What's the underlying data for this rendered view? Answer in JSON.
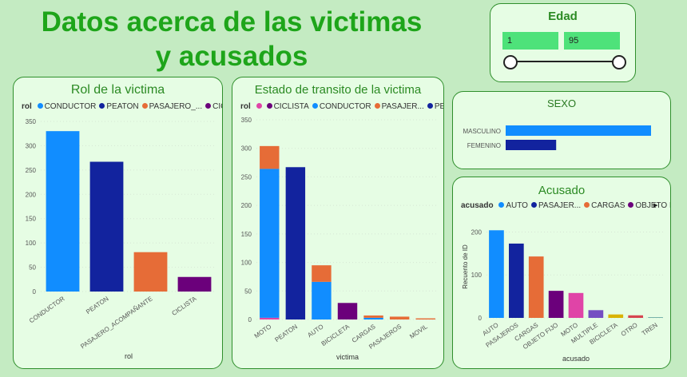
{
  "page": {
    "title_line1": "Datos acerca de las victimas",
    "title_line2": "y acusados"
  },
  "edad": {
    "title": "Edad",
    "min": "1",
    "max": "95"
  },
  "colors": {
    "blue": "#118dff",
    "navy": "#12239e",
    "orange": "#e66c37",
    "purple": "#6b007b",
    "pink": "#e044a7",
    "violet": "#744ec2",
    "yellow": "#d9b300",
    "red": "#d64550",
    "teal": "#197278"
  },
  "rol": {
    "title": "Rol de la victima",
    "legend_title": "rol",
    "legend": [
      {
        "label": "CONDUCTOR",
        "color": "#118dff"
      },
      {
        "label": "PEATON",
        "color": "#12239e"
      },
      {
        "label": "PASAJERO_...",
        "color": "#e66c37"
      },
      {
        "label": "CICLISTA",
        "color": "#6b007b"
      }
    ],
    "xlabel": "rol"
  },
  "estado": {
    "title": "Estado de transito de la victima",
    "legend_title": "rol",
    "legend": [
      {
        "label": "",
        "color": "#e044a7"
      },
      {
        "label": "CICLISTA",
        "color": "#6b007b"
      },
      {
        "label": "CONDUCTOR",
        "color": "#118dff"
      },
      {
        "label": "PASAJER...",
        "color": "#e66c37"
      },
      {
        "label": "PEATON",
        "color": "#12239e"
      }
    ],
    "xlabel": "victima"
  },
  "sexo": {
    "title": "SEXO"
  },
  "acusado": {
    "title": "Acusado",
    "legend_title": "acusado",
    "legend": [
      {
        "label": "AUTO",
        "color": "#118dff"
      },
      {
        "label": "PASAJER...",
        "color": "#12239e"
      },
      {
        "label": "CARGAS",
        "color": "#e66c37"
      },
      {
        "label": "OBJETO FI...",
        "color": "#6b007b"
      }
    ],
    "more_arrow": "▸",
    "xlabel": "acusado",
    "ylabel": "Recuento de ID"
  },
  "chart_data": [
    {
      "id": "rol",
      "type": "bar",
      "categories": [
        "CONDUCTOR",
        "PEATON",
        "PASAJERO_ACOMPAÑANTE",
        "CICLISTA"
      ],
      "values": [
        330,
        267,
        81,
        30
      ],
      "colors": [
        "#118dff",
        "#12239e",
        "#e66c37",
        "#6b007b"
      ],
      "xlabel": "rol",
      "ylim": [
        0,
        350
      ],
      "yticks": [
        0,
        50,
        100,
        150,
        200,
        250,
        300,
        350
      ]
    },
    {
      "id": "estado",
      "type": "bar",
      "stacked": true,
      "categories": [
        "MOTO",
        "PEATON",
        "AUTO",
        "BICICLETA",
        "CARGAS",
        "PASAJEROS",
        "MOVIL"
      ],
      "series": [
        {
          "name": "",
          "color": "#e044a7",
          "values": [
            3,
            0,
            0,
            0,
            0,
            0,
            0
          ]
        },
        {
          "name": "CICLISTA",
          "color": "#6b007b",
          "values": [
            0,
            0,
            0,
            29,
            0,
            0,
            0
          ]
        },
        {
          "name": "CONDUCTOR",
          "color": "#118dff",
          "values": [
            261,
            0,
            66,
            0,
            3,
            0,
            0
          ]
        },
        {
          "name": "PASAJER...",
          "color": "#e66c37",
          "values": [
            40,
            0,
            29,
            0,
            4,
            5,
            2
          ]
        },
        {
          "name": "PEATON",
          "color": "#12239e",
          "values": [
            0,
            267,
            0,
            0,
            0,
            0,
            0
          ]
        }
      ],
      "xlabel": "victima",
      "ylim": [
        0,
        350
      ],
      "yticks": [
        0,
        50,
        100,
        150,
        200,
        250,
        300,
        350
      ]
    },
    {
      "id": "sexo",
      "type": "bar",
      "orientation": "horizontal",
      "categories": [
        "MASCULINO",
        "FEMENINO"
      ],
      "values": [
        524,
        182
      ],
      "colors": [
        "#118dff",
        "#12239e"
      ]
    },
    {
      "id": "acusado",
      "type": "bar",
      "categories": [
        "AUTO",
        "PASAJEROS",
        "CARGAS",
        "OBJETO FIJO",
        "MOTO",
        "MULTIPLE",
        "BICICLETA",
        "OTRO",
        "TREN"
      ],
      "values": [
        204,
        173,
        143,
        63,
        58,
        18,
        8,
        6,
        1
      ],
      "colors": [
        "#118dff",
        "#12239e",
        "#e66c37",
        "#6b007b",
        "#e044a7",
        "#744ec2",
        "#d9b300",
        "#d64550",
        "#197278"
      ],
      "xlabel": "acusado",
      "ylabel": "Recuento de ID",
      "ylim": [
        0,
        225
      ],
      "yticks": [
        0,
        100,
        200
      ]
    }
  ]
}
